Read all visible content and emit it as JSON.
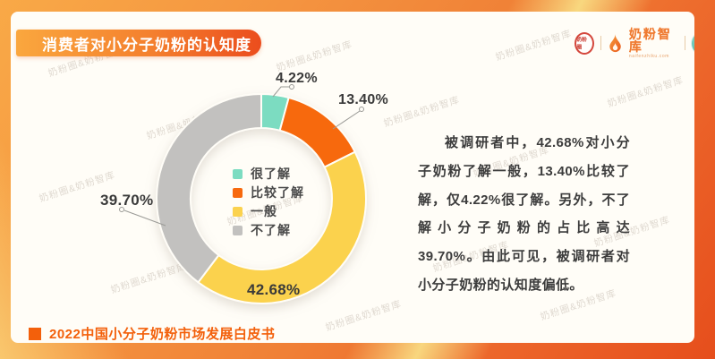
{
  "page": {
    "title_banner": "消费者对小分子奶粉的认知度",
    "footer": "2022中国小分子奶粉市场发展白皮书",
    "watermark": "奶粉圈&奶粉智库",
    "analysis_text": "被调研者中，42.68%对小分子奶粉了解一般，13.40%比较了解，仅4.22%很了解。另外，不了解小分子奶粉的占比高达39.70%。由此可见，被调研者对小分子奶粉的认知度偏低。"
  },
  "header_logos": {
    "stamp_text": "奶粉圈",
    "brand_name": "奶粉智库",
    "brand_domain": "naifenzhiku.com",
    "badge_line1": "营养",
    "badge_line2": "智库"
  },
  "chart_data": {
    "type": "pie",
    "subtype": "donut",
    "title": "消费者对小分子奶粉的认知度",
    "categories": [
      "很了解",
      "比较了解",
      "一般",
      "不了解"
    ],
    "values": [
      4.22,
      13.4,
      42.68,
      39.7
    ],
    "unit": "%",
    "start_angle_deg": 0,
    "direction": "clockwise",
    "legend_position": "center-of-donut",
    "slices": [
      {
        "name": "很了解",
        "value": 4.22,
        "label": "4.22%",
        "color": "#7CDCC1"
      },
      {
        "name": "比较了解",
        "value": 13.4,
        "label": "13.40%",
        "color": "#F7690E"
      },
      {
        "name": "一般",
        "value": 42.68,
        "label": "42.68%",
        "color": "#FBD24E"
      },
      {
        "name": "不了解",
        "value": 39.7,
        "label": "39.70%",
        "color": "#C2C1BF"
      }
    ]
  },
  "colors": {
    "accent_orange": "#F3600B",
    "banner_gradient_start": "#FAA73E",
    "banner_gradient_end": "#EB4D1D",
    "card_background": "#FFFDF7",
    "text_dark": "#3C3C3C"
  }
}
